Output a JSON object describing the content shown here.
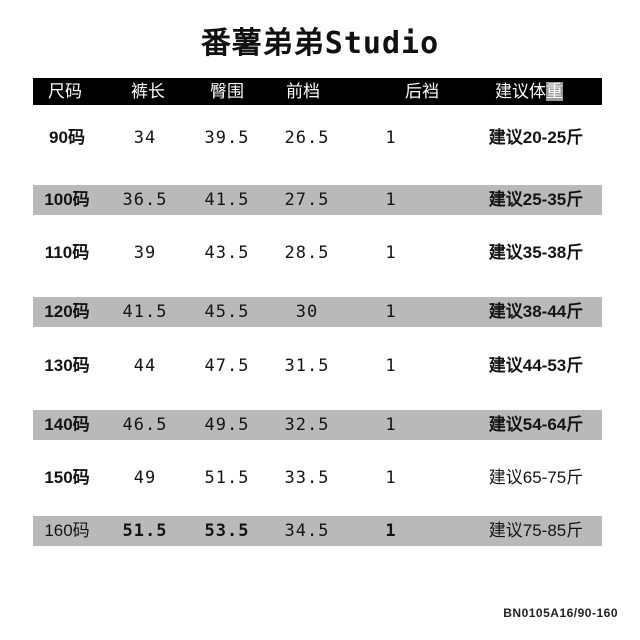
{
  "title": "番薯弟弟Studio",
  "footer": "BN0105A16/90-160",
  "colors": {
    "header_bg": "#000000",
    "header_text": "#ffffff",
    "stripe": "#b9b9b9",
    "text": "#141414",
    "background": "#ffffff"
  },
  "table": {
    "headers": [
      "尺码",
      "裤长",
      "臀围",
      "前档",
      "后裆",
      "建议体重"
    ],
    "rows": [
      {
        "cells": [
          "90码",
          "34",
          "39.5",
          "26.5",
          "1",
          "建议20-25斤"
        ],
        "striped": false,
        "bold": [
          true,
          false,
          false,
          false,
          false,
          true
        ]
      },
      {
        "cells": [
          "100码",
          "36.5",
          "41.5",
          "27.5",
          "1",
          "建议25-35斤"
        ],
        "striped": true,
        "bold": [
          true,
          false,
          false,
          false,
          false,
          true
        ]
      },
      {
        "cells": [
          "110码",
          "39",
          "43.5",
          "28.5",
          "1",
          "建议35-38斤"
        ],
        "striped": false,
        "bold": [
          true,
          false,
          false,
          false,
          false,
          true
        ]
      },
      {
        "cells": [
          "120码",
          "41.5",
          "45.5",
          "30",
          "1",
          "建议38-44斤"
        ],
        "striped": true,
        "bold": [
          true,
          false,
          false,
          false,
          false,
          true
        ]
      },
      {
        "cells": [
          "130码",
          "44",
          "47.5",
          "31.5",
          "1",
          "建议44-53斤"
        ],
        "striped": false,
        "bold": [
          true,
          false,
          false,
          false,
          false,
          true
        ]
      },
      {
        "cells": [
          "140码",
          "46.5",
          "49.5",
          "32.5",
          "1",
          "建议54-64斤"
        ],
        "striped": true,
        "bold": [
          true,
          false,
          false,
          false,
          false,
          true
        ]
      },
      {
        "cells": [
          "150码",
          "49",
          "51.5",
          "33.5",
          "1",
          "建议65-75斤"
        ],
        "striped": false,
        "bold": [
          true,
          false,
          false,
          false,
          false,
          false
        ]
      },
      {
        "cells": [
          "160码",
          "51.5",
          "53.5",
          "34.5",
          "1",
          "建议75-85斤"
        ],
        "striped": true,
        "bold": [
          false,
          true,
          true,
          false,
          true,
          false
        ]
      }
    ]
  },
  "chart_data": {
    "type": "table",
    "title": "番薯弟弟Studio",
    "columns": [
      "尺码",
      "裤长",
      "臀围",
      "前档",
      "后裆",
      "建议体重"
    ],
    "rows": [
      [
        "90码",
        34,
        39.5,
        26.5,
        1,
        "建议20-25斤"
      ],
      [
        "100码",
        36.5,
        41.5,
        27.5,
        1,
        "建议25-35斤"
      ],
      [
        "110码",
        39,
        43.5,
        28.5,
        1,
        "建议35-38斤"
      ],
      [
        "120码",
        41.5,
        45.5,
        30,
        1,
        "建议38-44斤"
      ],
      [
        "130码",
        44,
        47.5,
        31.5,
        1,
        "建议44-53斤"
      ],
      [
        "140码",
        46.5,
        49.5,
        32.5,
        1,
        "建议54-64斤"
      ],
      [
        "150码",
        49,
        51.5,
        33.5,
        1,
        "建议65-75斤"
      ],
      [
        "160码",
        51.5,
        53.5,
        34.5,
        1,
        "建议75-85斤"
      ]
    ],
    "footnote": "BN0105A16/90-160",
    "layout": {
      "striped_rows": [
        "100码",
        "120码",
        "140码",
        "160码"
      ],
      "header_style": "black-bar"
    }
  }
}
